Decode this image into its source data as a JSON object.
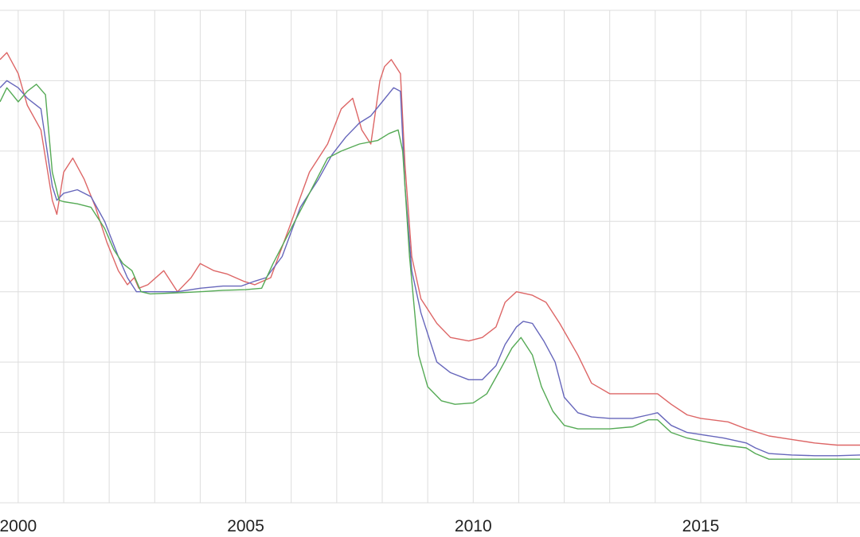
{
  "chart_data": {
    "type": "line",
    "title": "",
    "xlabel": "",
    "ylabel": "",
    "grid": true,
    "x_ticks": [
      "2000",
      "2005",
      "2010",
      "2015"
    ],
    "xlim": [
      1999.6,
      2018.5
    ],
    "ylim": [
      0,
      7
    ],
    "series": [
      {
        "color": "#dd6666",
        "points": [
          [
            1999.6,
            6.3
          ],
          [
            1999.75,
            6.4
          ],
          [
            2000.0,
            6.1
          ],
          [
            2000.2,
            5.65
          ],
          [
            2000.5,
            5.3
          ],
          [
            2000.75,
            4.3
          ],
          [
            2000.85,
            4.1
          ],
          [
            2001.0,
            4.7
          ],
          [
            2001.2,
            4.9
          ],
          [
            2001.45,
            4.6
          ],
          [
            2001.7,
            4.2
          ],
          [
            2001.95,
            3.7
          ],
          [
            2002.2,
            3.3
          ],
          [
            2002.4,
            3.1
          ],
          [
            2002.55,
            3.2
          ],
          [
            2002.65,
            3.05
          ],
          [
            2002.85,
            3.1
          ],
          [
            2003.2,
            3.3
          ],
          [
            2003.5,
            3.0
          ],
          [
            2003.8,
            3.2
          ],
          [
            2004.0,
            3.4
          ],
          [
            2004.3,
            3.3
          ],
          [
            2004.6,
            3.25
          ],
          [
            2004.95,
            3.15
          ],
          [
            2005.2,
            3.1
          ],
          [
            2005.55,
            3.2
          ],
          [
            2005.95,
            3.9
          ],
          [
            2006.4,
            4.7
          ],
          [
            2006.8,
            5.1
          ],
          [
            2007.1,
            5.6
          ],
          [
            2007.35,
            5.75
          ],
          [
            2007.55,
            5.3
          ],
          [
            2007.75,
            5.1
          ],
          [
            2007.95,
            6.0
          ],
          [
            2008.05,
            6.2
          ],
          [
            2008.2,
            6.3
          ],
          [
            2008.4,
            6.1
          ],
          [
            2008.5,
            4.8
          ],
          [
            2008.65,
            3.5
          ],
          [
            2008.85,
            2.9
          ],
          [
            2009.2,
            2.55
          ],
          [
            2009.5,
            2.35
          ],
          [
            2009.9,
            2.3
          ],
          [
            2010.2,
            2.35
          ],
          [
            2010.5,
            2.5
          ],
          [
            2010.7,
            2.85
          ],
          [
            2010.95,
            3.0
          ],
          [
            2011.3,
            2.95
          ],
          [
            2011.6,
            2.85
          ],
          [
            2011.9,
            2.55
          ],
          [
            2012.3,
            2.1
          ],
          [
            2012.6,
            1.7
          ],
          [
            2013.0,
            1.55
          ],
          [
            2013.4,
            1.55
          ],
          [
            2013.8,
            1.55
          ],
          [
            2014.05,
            1.55
          ],
          [
            2014.35,
            1.4
          ],
          [
            2014.7,
            1.25
          ],
          [
            2015.0,
            1.2
          ],
          [
            2015.6,
            1.15
          ],
          [
            2016.0,
            1.05
          ],
          [
            2016.5,
            0.95
          ],
          [
            2017.0,
            0.9
          ],
          [
            2017.5,
            0.85
          ],
          [
            2018.0,
            0.82
          ],
          [
            2018.5,
            0.82
          ]
        ]
      },
      {
        "color": "#6666bb",
        "points": [
          [
            1999.6,
            5.9
          ],
          [
            1999.75,
            6.0
          ],
          [
            2000.0,
            5.9
          ],
          [
            2000.2,
            5.75
          ],
          [
            2000.5,
            5.6
          ],
          [
            2000.75,
            4.5
          ],
          [
            2000.85,
            4.3
          ],
          [
            2001.0,
            4.4
          ],
          [
            2001.3,
            4.45
          ],
          [
            2001.6,
            4.35
          ],
          [
            2001.9,
            4.0
          ],
          [
            2002.2,
            3.5
          ],
          [
            2002.4,
            3.2
          ],
          [
            2002.6,
            3.0
          ],
          [
            2002.8,
            3.0
          ],
          [
            2003.0,
            3.0
          ],
          [
            2003.5,
            3.0
          ],
          [
            2004.0,
            3.05
          ],
          [
            2004.5,
            3.08
          ],
          [
            2004.9,
            3.08
          ],
          [
            2005.2,
            3.15
          ],
          [
            2005.45,
            3.2
          ],
          [
            2005.8,
            3.5
          ],
          [
            2006.2,
            4.2
          ],
          [
            2006.6,
            4.6
          ],
          [
            2006.9,
            4.95
          ],
          [
            2007.2,
            5.2
          ],
          [
            2007.5,
            5.4
          ],
          [
            2007.75,
            5.5
          ],
          [
            2008.0,
            5.7
          ],
          [
            2008.25,
            5.9
          ],
          [
            2008.4,
            5.85
          ],
          [
            2008.5,
            4.5
          ],
          [
            2008.65,
            3.3
          ],
          [
            2008.85,
            2.7
          ],
          [
            2009.2,
            2.0
          ],
          [
            2009.5,
            1.85
          ],
          [
            2009.9,
            1.75
          ],
          [
            2010.2,
            1.75
          ],
          [
            2010.5,
            1.95
          ],
          [
            2010.7,
            2.25
          ],
          [
            2010.95,
            2.5
          ],
          [
            2011.1,
            2.58
          ],
          [
            2011.3,
            2.55
          ],
          [
            2011.55,
            2.3
          ],
          [
            2011.8,
            2.0
          ],
          [
            2012.0,
            1.5
          ],
          [
            2012.3,
            1.28
          ],
          [
            2012.6,
            1.22
          ],
          [
            2013.0,
            1.2
          ],
          [
            2013.5,
            1.2
          ],
          [
            2013.85,
            1.25
          ],
          [
            2014.05,
            1.28
          ],
          [
            2014.35,
            1.1
          ],
          [
            2014.7,
            1.0
          ],
          [
            2015.0,
            0.97
          ],
          [
            2015.5,
            0.92
          ],
          [
            2016.0,
            0.85
          ],
          [
            2016.2,
            0.78
          ],
          [
            2016.5,
            0.7
          ],
          [
            2017.0,
            0.68
          ],
          [
            2017.5,
            0.67
          ],
          [
            2018.0,
            0.67
          ],
          [
            2018.5,
            0.68
          ]
        ]
      },
      {
        "color": "#55aa55",
        "points": [
          [
            1999.6,
            5.7
          ],
          [
            1999.75,
            5.9
          ],
          [
            2000.0,
            5.7
          ],
          [
            2000.2,
            5.85
          ],
          [
            2000.4,
            5.95
          ],
          [
            2000.6,
            5.8
          ],
          [
            2000.75,
            4.7
          ],
          [
            2000.9,
            4.3
          ],
          [
            2001.0,
            4.28
          ],
          [
            2001.3,
            4.25
          ],
          [
            2001.6,
            4.2
          ],
          [
            2001.9,
            3.9
          ],
          [
            2002.1,
            3.6
          ],
          [
            2002.3,
            3.4
          ],
          [
            2002.5,
            3.3
          ],
          [
            2002.7,
            3.0
          ],
          [
            2002.9,
            2.97
          ],
          [
            2003.3,
            2.98
          ],
          [
            2003.7,
            2.99
          ],
          [
            2004.0,
            3.0
          ],
          [
            2004.5,
            3.02
          ],
          [
            2005.0,
            3.03
          ],
          [
            2005.35,
            3.05
          ],
          [
            2005.6,
            3.4
          ],
          [
            2006.0,
            3.9
          ],
          [
            2006.4,
            4.4
          ],
          [
            2006.8,
            4.9
          ],
          [
            2007.1,
            5.0
          ],
          [
            2007.5,
            5.1
          ],
          [
            2007.9,
            5.15
          ],
          [
            2008.15,
            5.25
          ],
          [
            2008.35,
            5.3
          ],
          [
            2008.45,
            5.0
          ],
          [
            2008.6,
            3.5
          ],
          [
            2008.8,
            2.1
          ],
          [
            2009.0,
            1.65
          ],
          [
            2009.3,
            1.45
          ],
          [
            2009.6,
            1.4
          ],
          [
            2010.0,
            1.42
          ],
          [
            2010.3,
            1.55
          ],
          [
            2010.6,
            1.9
          ],
          [
            2010.85,
            2.2
          ],
          [
            2011.05,
            2.35
          ],
          [
            2011.3,
            2.1
          ],
          [
            2011.5,
            1.65
          ],
          [
            2011.75,
            1.3
          ],
          [
            2012.0,
            1.1
          ],
          [
            2012.3,
            1.05
          ],
          [
            2012.6,
            1.05
          ],
          [
            2013.0,
            1.05
          ],
          [
            2013.5,
            1.08
          ],
          [
            2013.85,
            1.18
          ],
          [
            2014.05,
            1.18
          ],
          [
            2014.35,
            1.0
          ],
          [
            2014.7,
            0.92
          ],
          [
            2015.0,
            0.88
          ],
          [
            2015.5,
            0.82
          ],
          [
            2016.0,
            0.78
          ],
          [
            2016.2,
            0.7
          ],
          [
            2016.5,
            0.62
          ],
          [
            2017.0,
            0.62
          ],
          [
            2017.5,
            0.62
          ],
          [
            2018.0,
            0.62
          ],
          [
            2018.5,
            0.62
          ]
        ]
      }
    ]
  }
}
